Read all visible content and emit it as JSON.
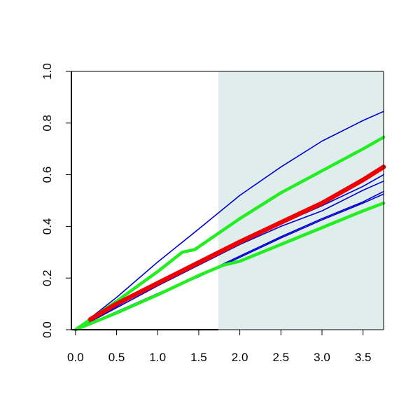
{
  "chart_data": {
    "type": "line",
    "title": "",
    "xlabel": "",
    "ylabel": "",
    "xlim": [
      -0.05,
      3.75
    ],
    "ylim": [
      0,
      1
    ],
    "x_ticks": [
      "0.0",
      "0.5",
      "1.0",
      "1.5",
      "2.0",
      "2.5",
      "3.0",
      "3.5"
    ],
    "y_ticks": [
      "0.0",
      "0.2",
      "0.4",
      "0.6",
      "0.8",
      "1.0"
    ],
    "grid": false,
    "legend": "none",
    "shaded_region": {
      "x_start": 1.74,
      "x_end": 3.75,
      "color": "#e0eded"
    },
    "series": [
      {
        "color": "#0000cc",
        "style": "thin",
        "x": [
          0,
          0.5,
          1.0,
          1.5,
          2.0,
          2.5,
          3.0,
          3.5,
          3.75
        ],
        "y": [
          0,
          0.125,
          0.262,
          0.39,
          0.52,
          0.63,
          0.73,
          0.81,
          0.845
        ]
      },
      {
        "color": "#0000cc",
        "style": "thin",
        "x": [
          0,
          0.5,
          1.0,
          1.5,
          2.0,
          2.5,
          3.0,
          3.5,
          3.75
        ],
        "y": [
          0,
          0.09,
          0.18,
          0.265,
          0.34,
          0.41,
          0.48,
          0.555,
          0.6
        ]
      },
      {
        "color": "#0000cc",
        "style": "thin",
        "x": [
          0,
          0.5,
          1.0,
          1.5,
          2.0,
          2.5,
          3.0,
          3.5,
          3.75
        ],
        "y": [
          0,
          0.085,
          0.17,
          0.25,
          0.33,
          0.4,
          0.46,
          0.54,
          0.575
        ]
      },
      {
        "color": "#0000cc",
        "style": "thin",
        "x": [
          0,
          0.5,
          1.0,
          1.5,
          2.0,
          2.5,
          3.0,
          3.5,
          3.75
        ],
        "y": [
          0,
          0.07,
          0.14,
          0.21,
          0.285,
          0.36,
          0.43,
          0.495,
          0.535
        ]
      },
      {
        "color": "#0000cc",
        "style": "thin",
        "x": [
          0,
          0.5,
          1.0,
          1.5,
          2.0,
          2.5,
          3.0,
          3.5,
          3.75
        ],
        "y": [
          0,
          0.068,
          0.136,
          0.205,
          0.28,
          0.355,
          0.425,
          0.49,
          0.525
        ]
      },
      {
        "color": "#22ee22",
        "style": "thick",
        "x": [
          0,
          0.5,
          1.0,
          1.3,
          1.45,
          2.0,
          2.5,
          3.0,
          3.5,
          3.75
        ],
        "y": [
          0,
          0.11,
          0.225,
          0.3,
          0.31,
          0.43,
          0.53,
          0.615,
          0.7,
          0.745
        ]
      },
      {
        "color": "#22ee22",
        "style": "thick",
        "x": [
          0,
          0.5,
          1.0,
          1.5,
          1.8,
          2.0,
          2.5,
          3.0,
          3.5,
          3.75
        ],
        "y": [
          0,
          0.065,
          0.135,
          0.21,
          0.25,
          0.265,
          0.33,
          0.395,
          0.46,
          0.49
        ]
      },
      {
        "color": "#ee0000",
        "style": "thickest",
        "x": [
          0.18,
          0.5,
          1.0,
          1.5,
          2.0,
          2.5,
          3.0,
          3.5,
          3.75
        ],
        "y": [
          0.04,
          0.1,
          0.18,
          0.26,
          0.34,
          0.415,
          0.49,
          0.58,
          0.63
        ]
      }
    ]
  }
}
